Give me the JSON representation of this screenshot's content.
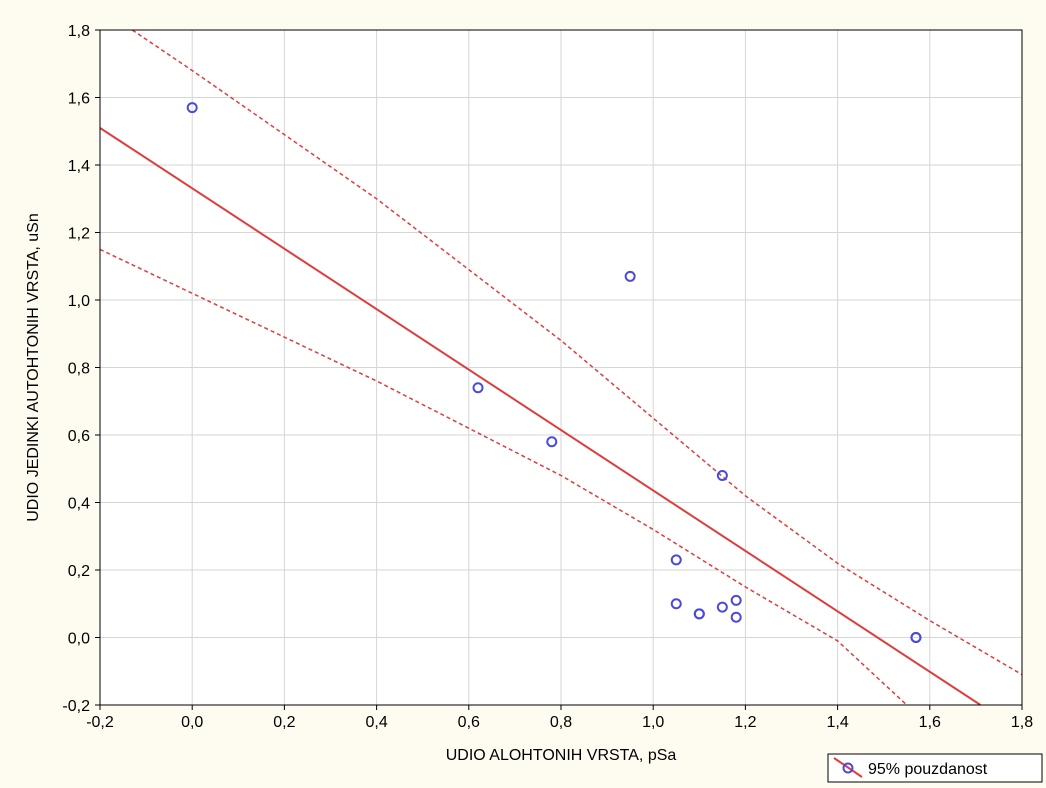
{
  "chart_data": {
    "type": "scatter",
    "title": "",
    "xlabel": "UDIO ALOHTONIH VRSTA, pSa",
    "ylabel": "UDIO JEDINKI AUTOHTONIH VRSTA, uSn",
    "xlim": [
      -0.2,
      1.8
    ],
    "ylim": [
      -0.2,
      1.8
    ],
    "x_ticks": [
      -0.2,
      0.0,
      0.2,
      0.4,
      0.6,
      0.8,
      1.0,
      1.2,
      1.4,
      1.6,
      1.8
    ],
    "y_ticks": [
      -0.2,
      0.0,
      0.2,
      0.4,
      0.6,
      0.8,
      1.0,
      1.2,
      1.4,
      1.6,
      1.8
    ],
    "x_tick_labels": [
      "-0,2",
      "0,0",
      "0,2",
      "0,4",
      "0,6",
      "0,8",
      "1,0",
      "1,2",
      "1,4",
      "1,6",
      "1,8"
    ],
    "y_tick_labels": [
      "-0,2",
      "0,0",
      "0,2",
      "0,4",
      "0,6",
      "0,8",
      "1,0",
      "1,2",
      "1,4",
      "1,6",
      "1,8"
    ],
    "grid": true,
    "points": [
      {
        "x": 0.0,
        "y": 1.57
      },
      {
        "x": 0.62,
        "y": 0.74
      },
      {
        "x": 0.78,
        "y": 0.58
      },
      {
        "x": 0.95,
        "y": 1.07
      },
      {
        "x": 1.15,
        "y": 0.48
      },
      {
        "x": 1.05,
        "y": 0.23
      },
      {
        "x": 1.05,
        "y": 0.1
      },
      {
        "x": 1.1,
        "y": 0.07
      },
      {
        "x": 1.1,
        "y": 0.07
      },
      {
        "x": 1.15,
        "y": 0.09
      },
      {
        "x": 1.18,
        "y": 0.11
      },
      {
        "x": 1.18,
        "y": 0.06
      },
      {
        "x": 1.57,
        "y": 0.0
      },
      {
        "x": 1.57,
        "y": 0.0
      }
    ],
    "fit_line": [
      {
        "x": -0.2,
        "y": 1.51
      },
      {
        "x": 1.71,
        "y": -0.2
      }
    ],
    "confidence_upper": [
      {
        "x": -0.13,
        "y": 1.8
      },
      {
        "x": 0.0,
        "y": 1.68
      },
      {
        "x": 0.4,
        "y": 1.3
      },
      {
        "x": 0.8,
        "y": 0.88
      },
      {
        "x": 1.2,
        "y": 0.42
      },
      {
        "x": 1.4,
        "y": 0.22
      },
      {
        "x": 1.6,
        "y": 0.05
      },
      {
        "x": 1.8,
        "y": -0.11
      }
    ],
    "confidence_lower": [
      {
        "x": -0.2,
        "y": 1.15
      },
      {
        "x": 0.0,
        "y": 1.02
      },
      {
        "x": 0.4,
        "y": 0.76
      },
      {
        "x": 0.8,
        "y": 0.48
      },
      {
        "x": 1.0,
        "y": 0.32
      },
      {
        "x": 1.2,
        "y": 0.15
      },
      {
        "x": 1.4,
        "y": -0.01
      },
      {
        "x": 1.55,
        "y": -0.2
      }
    ],
    "legend": {
      "label": "95% pouzdanost",
      "position": "bottom-right"
    },
    "colors": {
      "background": "#fefcf0",
      "plot_background": "#ffffff",
      "grid": "#d6d6d6",
      "fit_line": "#e03c3c",
      "confidence": "#e03c3c",
      "points": "#4a4adc",
      "axis": "#000000"
    }
  }
}
